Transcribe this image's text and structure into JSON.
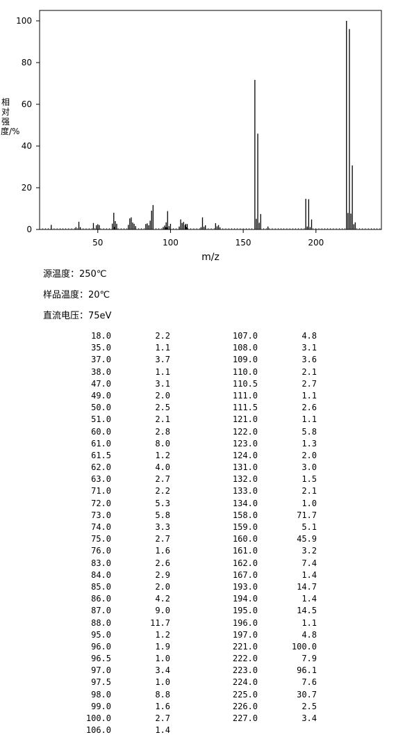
{
  "chart_data": {
    "type": "bar",
    "xlabel": "m/z",
    "ylabel": "相对强度/%",
    "xlim": [
      10,
      245
    ],
    "ylim": [
      0,
      105
    ],
    "xticks": [
      50,
      100,
      150,
      200
    ],
    "yticks": [
      0,
      20,
      40,
      60,
      80,
      100
    ],
    "grid": false,
    "color": "#000000",
    "points": [
      {
        "mz": "18.0",
        "ri": "2.2"
      },
      {
        "mz": "35.0",
        "ri": "1.1"
      },
      {
        "mz": "37.0",
        "ri": "3.7"
      },
      {
        "mz": "38.0",
        "ri": "1.1"
      },
      {
        "mz": "47.0",
        "ri": "3.1"
      },
      {
        "mz": "49.0",
        "ri": "2.0"
      },
      {
        "mz": "50.0",
        "ri": "2.5"
      },
      {
        "mz": "51.0",
        "ri": "2.1"
      },
      {
        "mz": "60.0",
        "ri": "2.8"
      },
      {
        "mz": "61.0",
        "ri": "8.0"
      },
      {
        "mz": "61.5",
        "ri": "1.2"
      },
      {
        "mz": "62.0",
        "ri": "4.0"
      },
      {
        "mz": "63.0",
        "ri": "2.7"
      },
      {
        "mz": "71.0",
        "ri": "2.2"
      },
      {
        "mz": "72.0",
        "ri": "5.3"
      },
      {
        "mz": "73.0",
        "ri": "5.8"
      },
      {
        "mz": "74.0",
        "ri": "3.3"
      },
      {
        "mz": "75.0",
        "ri": "2.7"
      },
      {
        "mz": "76.0",
        "ri": "1.6"
      },
      {
        "mz": "83.0",
        "ri": "2.6"
      },
      {
        "mz": "84.0",
        "ri": "2.9"
      },
      {
        "mz": "85.0",
        "ri": "2.0"
      },
      {
        "mz": "86.0",
        "ri": "4.2"
      },
      {
        "mz": "87.0",
        "ri": "9.0"
      },
      {
        "mz": "88.0",
        "ri": "11.7"
      },
      {
        "mz": "95.0",
        "ri": "1.2"
      },
      {
        "mz": "96.0",
        "ri": "1.9"
      },
      {
        "mz": "96.5",
        "ri": "1.0"
      },
      {
        "mz": "97.0",
        "ri": "3.4"
      },
      {
        "mz": "97.5",
        "ri": "1.0"
      },
      {
        "mz": "98.0",
        "ri": "8.8"
      },
      {
        "mz": "99.0",
        "ri": "1.6"
      },
      {
        "mz": "100.0",
        "ri": "2.7"
      },
      {
        "mz": "106.0",
        "ri": "1.4"
      },
      {
        "mz": "107.0",
        "ri": "4.8"
      },
      {
        "mz": "108.0",
        "ri": "3.1"
      },
      {
        "mz": "109.0",
        "ri": "3.6"
      },
      {
        "mz": "110.0",
        "ri": "2.1"
      },
      {
        "mz": "110.5",
        "ri": "2.7"
      },
      {
        "mz": "111.0",
        "ri": "1.1"
      },
      {
        "mz": "111.5",
        "ri": "2.6"
      },
      {
        "mz": "121.0",
        "ri": "1.1"
      },
      {
        "mz": "122.0",
        "ri": "5.8"
      },
      {
        "mz": "123.0",
        "ri": "1.3"
      },
      {
        "mz": "124.0",
        "ri": "2.0"
      },
      {
        "mz": "131.0",
        "ri": "3.0"
      },
      {
        "mz": "132.0",
        "ri": "1.5"
      },
      {
        "mz": "133.0",
        "ri": "2.1"
      },
      {
        "mz": "134.0",
        "ri": "1.0"
      },
      {
        "mz": "158.0",
        "ri": "71.7"
      },
      {
        "mz": "159.0",
        "ri": "5.1"
      },
      {
        "mz": "160.0",
        "ri": "45.9"
      },
      {
        "mz": "161.0",
        "ri": "3.2"
      },
      {
        "mz": "162.0",
        "ri": "7.4"
      },
      {
        "mz": "167.0",
        "ri": "1.4"
      },
      {
        "mz": "193.0",
        "ri": "14.7"
      },
      {
        "mz": "194.0",
        "ri": "1.4"
      },
      {
        "mz": "195.0",
        "ri": "14.5"
      },
      {
        "mz": "196.0",
        "ri": "1.1"
      },
      {
        "mz": "197.0",
        "ri": "4.8"
      },
      {
        "mz": "221.0",
        "ri": "100.0"
      },
      {
        "mz": "222.0",
        "ri": "7.9"
      },
      {
        "mz": "223.0",
        "ri": "96.1"
      },
      {
        "mz": "224.0",
        "ri": "7.6"
      },
      {
        "mz": "225.0",
        "ri": "30.7"
      },
      {
        "mz": "226.0",
        "ri": "2.5"
      },
      {
        "mz": "227.0",
        "ri": "3.4"
      }
    ]
  },
  "conditions": [
    "源温度：250℃",
    "样品温度：20℃",
    "直流电压：75eV"
  ]
}
